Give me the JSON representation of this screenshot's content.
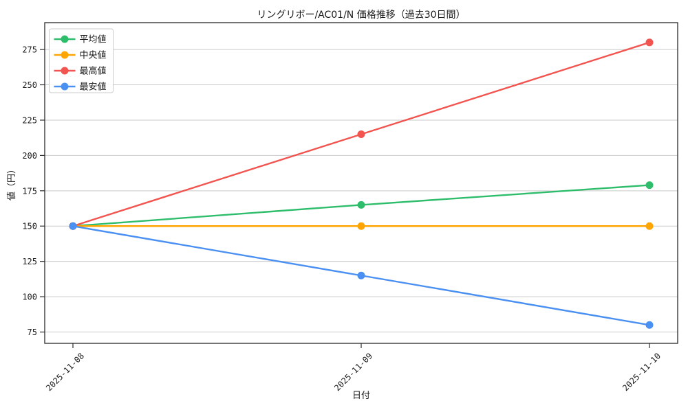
{
  "chart_data": {
    "type": "line",
    "title": "リングリボー/AC01/N 価格推移（過去30日間）",
    "xlabel": "日付",
    "ylabel": "値（円）",
    "categories": [
      "2025-11-08",
      "2025-11-09",
      "2025-11-10"
    ],
    "series": [
      {
        "key": "average",
        "name": "平均値",
        "color": "#2ebd6b",
        "values": [
          150,
          165,
          179
        ]
      },
      {
        "key": "median",
        "name": "中央値",
        "color": "#ffa502",
        "values": [
          150,
          150,
          150
        ]
      },
      {
        "key": "max",
        "name": "最高値",
        "color": "#f2544f",
        "values": [
          150,
          215,
          280
        ]
      },
      {
        "key": "min",
        "name": "最安値",
        "color": "#4a90f2",
        "values": [
          150,
          115,
          80
        ]
      }
    ],
    "ylim": [
      67,
      294
    ],
    "yticks": [
      75,
      100,
      125,
      150,
      175,
      200,
      225,
      250,
      275
    ],
    "grid": true,
    "legend_position": "top-left",
    "background_color": "#ffffff",
    "gridline_color": "#c9c9c9"
  }
}
